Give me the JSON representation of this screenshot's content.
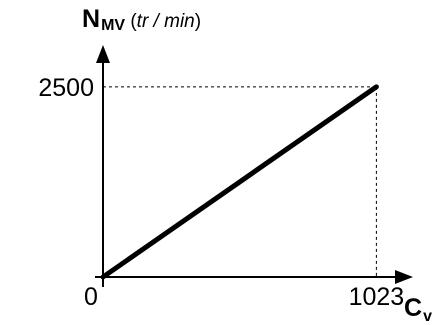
{
  "chart_data": {
    "type": "line",
    "x": [
      0,
      1023
    ],
    "y": [
      0,
      2500
    ],
    "xlim": [
      0,
      1160
    ],
    "ylim": [
      0,
      3050
    ],
    "x_ticks": [
      {
        "value": 0,
        "label": "0"
      },
      {
        "value": 1023,
        "label": "1023"
      }
    ],
    "y_ticks": [
      {
        "value": 2500,
        "label": "2500"
      }
    ],
    "ylabel": {
      "main": "N",
      "sub": "MV",
      "unit_open": " (",
      "unit": "tr / min",
      "unit_close": ")"
    },
    "xlabel": {
      "main": "C",
      "sub": "v"
    },
    "guides": "dashed lines from the end point to both axes",
    "grid": false,
    "line_color": "#000000"
  }
}
